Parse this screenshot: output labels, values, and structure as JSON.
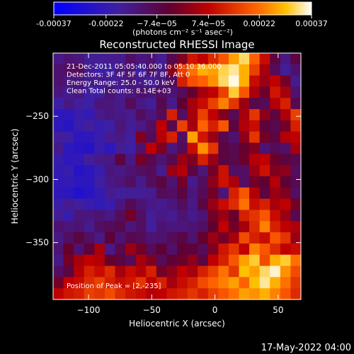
{
  "chart_data": {
    "type": "heatmap",
    "title": "Reconstructed RHESSI Image",
    "xlabel": "Heliocentric X (arcsec)",
    "ylabel": "Heliocentric Y (arcsec)",
    "xlim": [
      -128,
      68
    ],
    "ylim": [
      -395,
      -200
    ],
    "x_ticks": [
      -100,
      -50,
      0,
      50
    ],
    "x_tick_labels": [
      "−100",
      "−50",
      "0",
      "50"
    ],
    "y_ticks": [
      -250,
      -300,
      -350
    ],
    "y_tick_labels": [
      "−250",
      "−300",
      "−350"
    ],
    "colorbar": {
      "range": [
        -0.00037,
        0.00037
      ],
      "ticks": [
        -0.00037,
        -0.00022,
        -7.4e-05,
        7.4e-05,
        0.00022,
        0.00037
      ],
      "tick_labels": [
        "-0.00037",
        "-0.00022",
        "−7.4e−05",
        "7.4e−05",
        "0.00022",
        "0.00037"
      ],
      "units_label": "(photons cm⁻² s⁻¹ asec⁻²)"
    },
    "annotations": [
      "21-Dec-2011 05:05:40.000 to 05:10:36.000",
      "Detectors: 3F 4F 5F 6F 7F 8F, Att 0",
      "Energy Range: 25.0 - 50.0 keV",
      "Clean     Total counts: 8.14E+03"
    ],
    "peak_label": "Position of Peak = [2,-235]",
    "peak": [
      2,
      -235
    ],
    "intensity_grid": [
      [
        0.3,
        0.33,
        0.32,
        0.27,
        0.27,
        0.28,
        0.28,
        0.36,
        0.31,
        0.33,
        0.27,
        0.4,
        0.5,
        0.64,
        0.6,
        0.68,
        0.76,
        0.86,
        0.94,
        0.78,
        0.62,
        0.42,
        0.3,
        0.42
      ],
      [
        0.34,
        0.36,
        0.38,
        0.28,
        0.24,
        0.25,
        0.31,
        0.33,
        0.24,
        0.35,
        0.29,
        0.52,
        0.72,
        0.8,
        0.88,
        0.86,
        0.93,
        0.96,
        0.88,
        0.72,
        0.56,
        0.38,
        0.27,
        0.34
      ],
      [
        0.34,
        0.31,
        0.32,
        0.29,
        0.29,
        0.27,
        0.28,
        0.32,
        0.29,
        0.26,
        0.31,
        0.38,
        0.66,
        0.75,
        0.78,
        0.84,
        0.94,
        0.99,
        0.88,
        0.62,
        0.54,
        0.6,
        0.48,
        0.29
      ],
      [
        0.31,
        0.28,
        0.31,
        0.25,
        0.24,
        0.33,
        0.28,
        0.31,
        0.35,
        0.33,
        0.36,
        0.33,
        0.38,
        0.46,
        0.56,
        0.6,
        0.72,
        0.92,
        0.76,
        0.56,
        0.47,
        0.64,
        0.56,
        0.34
      ],
      [
        0.24,
        0.3,
        0.26,
        0.24,
        0.31,
        0.32,
        0.29,
        0.38,
        0.3,
        0.27,
        0.4,
        0.29,
        0.45,
        0.56,
        0.62,
        0.72,
        0.82,
        0.7,
        0.54,
        0.4,
        0.38,
        0.58,
        0.66,
        0.4
      ],
      [
        0.18,
        0.18,
        0.22,
        0.2,
        0.29,
        0.31,
        0.3,
        0.28,
        0.37,
        0.31,
        0.38,
        0.66,
        0.36,
        0.56,
        0.72,
        0.6,
        0.5,
        0.38,
        0.56,
        0.7,
        0.52,
        0.42,
        0.57,
        0.72
      ],
      [
        0.18,
        0.16,
        0.22,
        0.26,
        0.22,
        0.24,
        0.32,
        0.27,
        0.3,
        0.36,
        0.6,
        0.4,
        0.72,
        0.56,
        0.78,
        0.66,
        0.76,
        0.42,
        0.58,
        0.62,
        0.43,
        0.4,
        0.48,
        0.66
      ],
      [
        0.26,
        0.24,
        0.17,
        0.18,
        0.22,
        0.28,
        0.3,
        0.26,
        0.5,
        0.38,
        0.58,
        0.66,
        0.36,
        0.86,
        0.64,
        0.54,
        0.4,
        0.34,
        0.52,
        0.7,
        0.48,
        0.42,
        0.58,
        0.6
      ],
      [
        0.29,
        0.18,
        0.16,
        0.15,
        0.22,
        0.18,
        0.27,
        0.24,
        0.34,
        0.6,
        0.5,
        0.31,
        0.38,
        0.62,
        0.84,
        0.7,
        0.42,
        0.39,
        0.46,
        0.5,
        0.33,
        0.38,
        0.35,
        0.56
      ],
      [
        0.22,
        0.18,
        0.19,
        0.26,
        0.29,
        0.3,
        0.42,
        0.3,
        0.48,
        0.4,
        0.33,
        0.4,
        0.54,
        0.5,
        0.66,
        0.54,
        0.42,
        0.4,
        0.47,
        0.58,
        0.6,
        0.47,
        0.42,
        0.4
      ],
      [
        0.2,
        0.22,
        0.15,
        0.17,
        0.22,
        0.31,
        0.3,
        0.33,
        0.36,
        0.38,
        0.28,
        0.54,
        0.58,
        0.42,
        0.32,
        0.48,
        0.63,
        0.36,
        0.36,
        0.54,
        0.63,
        0.5,
        0.52,
        0.37
      ],
      [
        0.19,
        0.2,
        0.17,
        0.17,
        0.24,
        0.3,
        0.32,
        0.36,
        0.29,
        0.37,
        0.42,
        0.33,
        0.48,
        0.29,
        0.37,
        0.52,
        0.63,
        0.57,
        0.36,
        0.48,
        0.44,
        0.58,
        0.44,
        0.39
      ],
      [
        0.18,
        0.17,
        0.13,
        0.16,
        0.2,
        0.28,
        0.26,
        0.27,
        0.27,
        0.28,
        0.38,
        0.36,
        0.42,
        0.31,
        0.38,
        0.48,
        0.32,
        0.66,
        0.76,
        0.58,
        0.42,
        0.54,
        0.5,
        0.36
      ],
      [
        0.23,
        0.28,
        0.26,
        0.22,
        0.2,
        0.22,
        0.31,
        0.39,
        0.33,
        0.3,
        0.28,
        0.31,
        0.37,
        0.3,
        0.42,
        0.54,
        0.62,
        0.68,
        0.8,
        0.62,
        0.66,
        0.56,
        0.6,
        0.48
      ],
      [
        0.27,
        0.22,
        0.32,
        0.31,
        0.33,
        0.3,
        0.37,
        0.48,
        0.36,
        0.27,
        0.3,
        0.28,
        0.33,
        0.29,
        0.33,
        0.48,
        0.54,
        0.46,
        0.66,
        0.7,
        0.76,
        0.62,
        0.54,
        0.4
      ],
      [
        0.34,
        0.32,
        0.33,
        0.28,
        0.36,
        0.38,
        0.4,
        0.31,
        0.36,
        0.26,
        0.33,
        0.31,
        0.32,
        0.33,
        0.36,
        0.45,
        0.6,
        0.48,
        0.56,
        0.68,
        0.82,
        0.66,
        0.6,
        0.57
      ],
      [
        0.3,
        0.36,
        0.42,
        0.36,
        0.3,
        0.44,
        0.33,
        0.4,
        0.38,
        0.33,
        0.34,
        0.38,
        0.41,
        0.34,
        0.46,
        0.54,
        0.48,
        0.56,
        0.74,
        0.66,
        0.62,
        0.76,
        0.7,
        0.54
      ],
      [
        0.33,
        0.46,
        0.34,
        0.43,
        0.56,
        0.3,
        0.4,
        0.54,
        0.48,
        0.38,
        0.44,
        0.35,
        0.44,
        0.43,
        0.38,
        0.5,
        0.64,
        0.7,
        0.6,
        0.82,
        0.76,
        0.68,
        0.6,
        0.62
      ],
      [
        0.3,
        0.48,
        0.56,
        0.6,
        0.58,
        0.46,
        0.42,
        0.38,
        0.56,
        0.5,
        0.38,
        0.44,
        0.47,
        0.52,
        0.42,
        0.6,
        0.66,
        0.76,
        0.86,
        0.92,
        0.74,
        0.88,
        0.92,
        0.8
      ],
      [
        0.36,
        0.42,
        0.58,
        0.66,
        0.62,
        0.68,
        0.56,
        0.62,
        0.58,
        0.66,
        0.48,
        0.52,
        0.6,
        0.56,
        0.66,
        0.72,
        0.8,
        0.7,
        0.9,
        0.86,
        0.94,
        0.98,
        0.84,
        0.74
      ],
      [
        0.48,
        0.6,
        0.62,
        0.68,
        0.72,
        0.66,
        0.62,
        0.64,
        0.7,
        0.6,
        0.66,
        0.56,
        0.62,
        0.66,
        0.74,
        0.78,
        0.82,
        0.86,
        0.78,
        0.9,
        0.96,
        0.88,
        0.8,
        0.7
      ],
      [
        0.6,
        0.64,
        0.66,
        0.72,
        0.7,
        0.74,
        0.68,
        0.64,
        0.62,
        0.58,
        0.6,
        0.64,
        0.66,
        0.7,
        0.66,
        0.72,
        0.76,
        0.8,
        0.86,
        0.84,
        0.88,
        0.82,
        0.76,
        0.68
      ]
    ]
  },
  "footer": {
    "timestamp": "17-May-2022 04:00"
  }
}
